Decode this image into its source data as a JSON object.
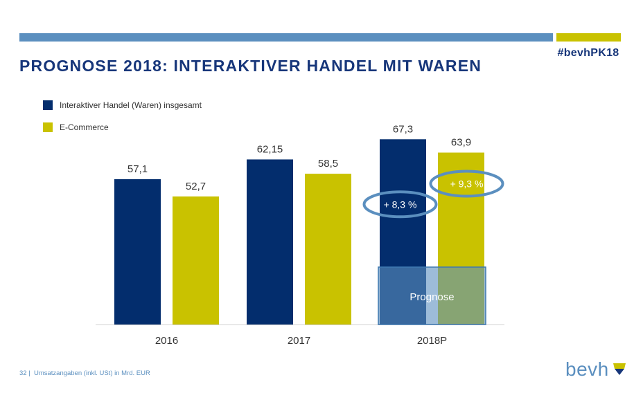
{
  "header": {
    "title": "PROGNOSE 2018: INTERAKTIVER HANDEL MIT WAREN",
    "hashtag": "#bevhPK18"
  },
  "colors": {
    "navy": "#032d6d",
    "olive": "#c9c200",
    "steel_blue": "#5b8fbf",
    "title_blue": "#17367a",
    "grey_text": "#333333"
  },
  "chart_data": {
    "type": "bar",
    "categories": [
      "2016",
      "2017",
      "2018P"
    ],
    "series": [
      {
        "name": "Interaktiver Handel (Waren) insgesamt",
        "values": [
          57.1,
          62.15,
          67.3
        ],
        "labels": [
          "57,1",
          "62,15",
          "67,3"
        ],
        "color": "#032d6d"
      },
      {
        "name": "E-Commerce",
        "values": [
          52.7,
          58.5,
          63.9
        ],
        "labels": [
          "52,7",
          "58,5",
          "63,9"
        ],
        "color": "#c9c200"
      }
    ],
    "ylim": [
      20,
      70
    ],
    "grid": false,
    "legend_position": "top-left",
    "annotations": [
      {
        "text": "+ 8,3 %",
        "series": 0,
        "category": "2018P"
      },
      {
        "text": "+ 9,3 %",
        "series": 1,
        "category": "2018P"
      }
    ],
    "forecast_label": "Prognose",
    "forecast_category": "2018P"
  },
  "footer": {
    "page_number": "32",
    "note": "Umsatzangaben (inkl. USt) in Mrd. EUR",
    "logo_text": "bevh"
  }
}
